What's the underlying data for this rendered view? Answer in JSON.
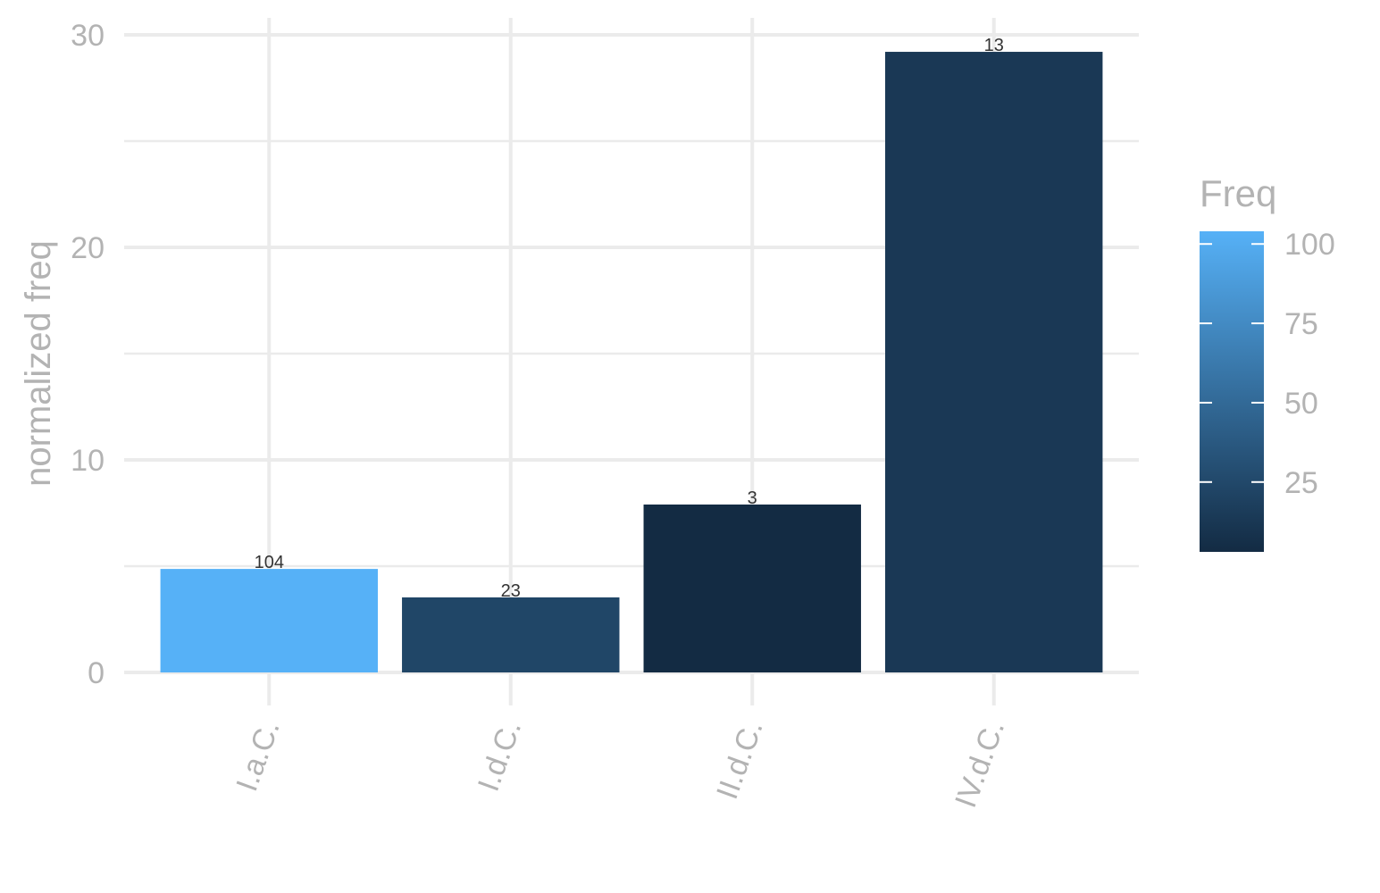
{
  "chart_data": {
    "type": "bar",
    "categories": [
      "I.a.C.",
      "I.d.C.",
      "II.d.C.",
      "IV.d.C."
    ],
    "values": [
      4.87,
      3.53,
      7.9,
      29.2
    ],
    "freq": [
      104,
      23,
      3,
      13
    ],
    "data_labels": [
      "104",
      "23",
      "3",
      "13"
    ],
    "ylabel": "normalized freq",
    "xlabel": "",
    "ylim": [
      0,
      30
    ],
    "y_ticks": [
      "0",
      "10",
      "20",
      "30"
    ],
    "grid": true,
    "legend": {
      "title": "Freq",
      "placement": "right",
      "type": "colorbar",
      "range": [
        3,
        104
      ],
      "ticks": [
        25,
        50,
        75,
        100
      ],
      "tick_labels": [
        "25",
        "50",
        "75",
        "100"
      ],
      "color_low": "#132b43",
      "color_high": "#56b1f7"
    }
  }
}
